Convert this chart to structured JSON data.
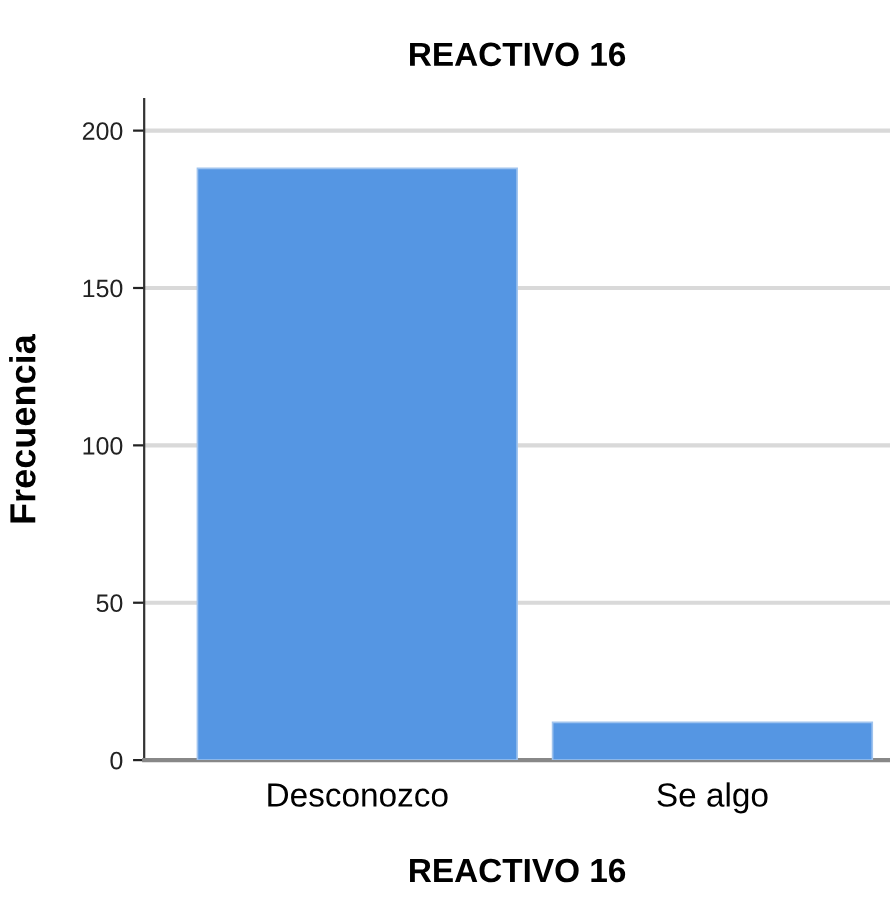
{
  "chart_data": {
    "type": "bar",
    "title": "REACTIVO 16",
    "xlabel": "REACTIVO 16",
    "ylabel": "Frecuencia",
    "categories": [
      "Desconozco",
      "Se algo"
    ],
    "values": [
      188,
      12
    ],
    "color": "#5596e3",
    "ylim": [
      0,
      210
    ],
    "yticks": [
      0,
      50,
      100,
      150,
      200
    ],
    "grid": "y",
    "legend": false
  }
}
